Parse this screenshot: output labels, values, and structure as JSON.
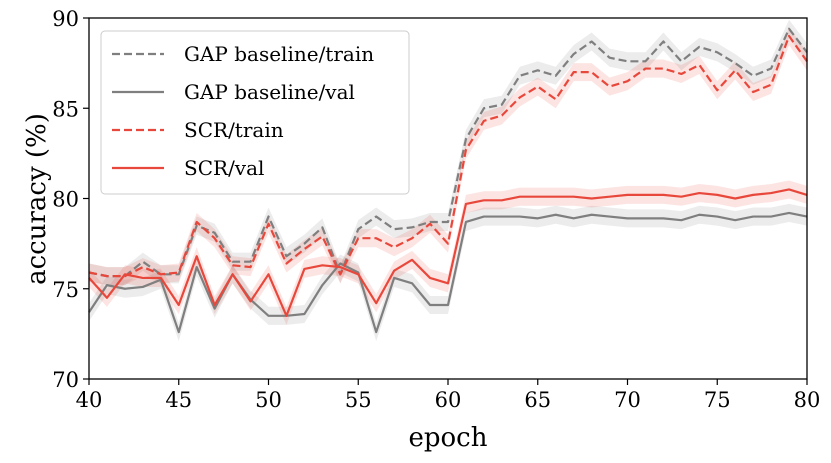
{
  "chart_data": {
    "type": "line",
    "xlabel": "epoch",
    "ylabel": "accuracy (%)",
    "xlim": [
      40,
      80
    ],
    "ylim": [
      70,
      90
    ],
    "xticks": [
      40,
      45,
      50,
      55,
      60,
      65,
      70,
      75,
      80
    ],
    "yticks": [
      70,
      75,
      80,
      85,
      90
    ],
    "grid": false,
    "legend_position": "top-left",
    "x": [
      40,
      41,
      42,
      43,
      44,
      45,
      46,
      47,
      48,
      49,
      50,
      51,
      52,
      53,
      54,
      55,
      56,
      57,
      58,
      59,
      60,
      61,
      62,
      63,
      64,
      65,
      66,
      67,
      68,
      69,
      70,
      71,
      72,
      73,
      74,
      75,
      76,
      77,
      78,
      79,
      80
    ],
    "series": [
      {
        "name": "GAP baseline/train",
        "color": "#7f7f7f",
        "dash": "dashed",
        "band": 0.5,
        "values": [
          75.9,
          75.7,
          75.7,
          76.5,
          75.8,
          75.8,
          78.5,
          78.1,
          76.5,
          76.5,
          79.0,
          76.8,
          77.5,
          78.4,
          75.8,
          78.3,
          79.0,
          78.3,
          78.4,
          78.7,
          78.7,
          83.3,
          85.0,
          85.2,
          86.8,
          87.1,
          86.8,
          88.0,
          88.7,
          87.8,
          87.6,
          87.6,
          88.7,
          87.6,
          88.4,
          88.1,
          87.5,
          86.8,
          87.2,
          89.4,
          88.1
        ]
      },
      {
        "name": "GAP baseline/val",
        "color": "#7f7f7f",
        "dash": "solid",
        "band": 0.5,
        "values": [
          73.7,
          75.2,
          75.0,
          75.1,
          75.5,
          72.6,
          76.2,
          73.9,
          75.8,
          74.4,
          73.5,
          73.5,
          73.6,
          75.2,
          76.4,
          75.9,
          72.6,
          75.6,
          75.3,
          74.1,
          74.1,
          78.7,
          79.0,
          79.0,
          79.0,
          78.9,
          79.1,
          78.9,
          79.1,
          79.0,
          78.9,
          78.9,
          78.9,
          78.8,
          79.1,
          79.0,
          78.8,
          79.0,
          79.0,
          79.2,
          79.0
        ]
      },
      {
        "name": "SCR/train",
        "color": "#e8483c",
        "dash": "dashed",
        "band": 0.5,
        "values": [
          75.9,
          75.7,
          75.7,
          76.2,
          75.8,
          75.9,
          78.7,
          77.8,
          76.3,
          76.2,
          78.6,
          76.4,
          77.2,
          77.9,
          75.8,
          77.8,
          77.8,
          77.3,
          77.8,
          78.6,
          77.5,
          82.7,
          84.3,
          84.6,
          85.6,
          86.2,
          85.5,
          87.0,
          87.0,
          86.2,
          86.5,
          87.2,
          87.2,
          86.9,
          87.4,
          86.0,
          87.1,
          85.9,
          86.3,
          89.0,
          87.6
        ]
      },
      {
        "name": "SCR/val",
        "color": "#e8483c",
        "dash": "solid",
        "band": 0.5,
        "values": [
          75.6,
          74.5,
          75.8,
          75.6,
          75.6,
          74.1,
          76.8,
          74.1,
          75.8,
          74.3,
          75.8,
          73.5,
          76.1,
          76.3,
          76.2,
          75.8,
          74.2,
          76.0,
          76.6,
          75.6,
          75.3,
          79.7,
          79.9,
          79.9,
          80.1,
          80.1,
          80.1,
          80.1,
          80.0,
          80.1,
          80.2,
          80.2,
          80.2,
          80.1,
          80.3,
          80.2,
          80.0,
          80.2,
          80.3,
          80.5,
          80.2
        ]
      }
    ]
  }
}
